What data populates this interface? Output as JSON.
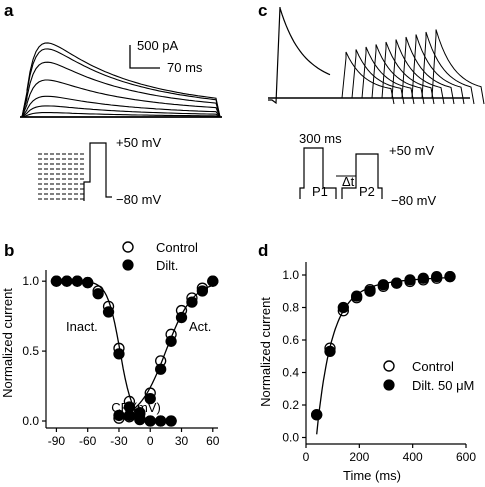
{
  "panels": {
    "a": {
      "letter": "a",
      "scalebar_current": "500 pA",
      "scalebar_time": "70 ms",
      "protocol_high": "+50 mV",
      "protocol_low": "−80 mV"
    },
    "c": {
      "letter": "c",
      "pulse_duration": "300 ms",
      "interval": "Δt",
      "p1": "P1",
      "p2": "P2",
      "protocol_high": "+50 mV",
      "protocol_low": "−80 mV"
    }
  },
  "chart_data": [
    {
      "panel": "b",
      "type": "scatter",
      "xlabel": "CP (mV)",
      "ylabel": "Normalized current",
      "xlim": [
        -100,
        65
      ],
      "ylim": [
        -0.05,
        1.08
      ],
      "xticks": [
        "-90",
        "-60",
        "-30",
        "0",
        "30",
        "60"
      ],
      "yticks": [
        "0.0",
        "0.5",
        "1.0"
      ],
      "legend_placement": "top-right",
      "annotations": {
        "inact": "Inact.",
        "act": "Act."
      },
      "series": [
        {
          "name": "Control",
          "marker": "open",
          "inact_x": [
            -90,
            -80,
            -70,
            -60,
            -50,
            -40,
            -30,
            -20,
            -10,
            0,
            10,
            20
          ],
          "inact_y": [
            1.0,
            1.0,
            1.0,
            0.99,
            0.93,
            0.82,
            0.52,
            0.14,
            0.02,
            0.0,
            0.0,
            0.0
          ],
          "act_x": [
            -30,
            -20,
            -10,
            0,
            10,
            20,
            30,
            40,
            50,
            60
          ],
          "act_y": [
            0.02,
            0.03,
            0.05,
            0.2,
            0.43,
            0.62,
            0.79,
            0.88,
            0.95,
            1.0
          ]
        },
        {
          "name": "Dilt.",
          "marker": "filled",
          "inact_x": [
            -90,
            -80,
            -70,
            -60,
            -50,
            -40,
            -30,
            -20,
            -10,
            0,
            10,
            20
          ],
          "inact_y": [
            1.0,
            1.0,
            1.0,
            0.99,
            0.91,
            0.78,
            0.48,
            0.1,
            0.01,
            0.0,
            0.0,
            0.0
          ],
          "act_x": [
            -30,
            -20,
            -10,
            0,
            10,
            20,
            30,
            40,
            50,
            60
          ],
          "act_y": [
            0.04,
            0.04,
            0.06,
            0.16,
            0.37,
            0.57,
            0.74,
            0.85,
            0.93,
            1.0
          ]
        }
      ]
    },
    {
      "panel": "d",
      "type": "scatter",
      "xlabel": "Time (ms)",
      "ylabel": "Normalized current",
      "xlim": [
        0,
        600
      ],
      "ylim": [
        -0.04,
        1.08
      ],
      "xticks": [
        "0",
        "200",
        "400",
        "600"
      ],
      "yticks": [
        "0.0",
        "0.2",
        "0.4",
        "0.6",
        "0.8",
        "1.0"
      ],
      "legend_placement": "bottom-right",
      "series": [
        {
          "name": "Control",
          "marker": "open",
          "x": [
            40,
            90,
            140,
            190,
            240,
            290,
            340,
            390,
            440,
            490,
            540
          ],
          "y": [
            0.14,
            0.55,
            0.78,
            0.86,
            0.91,
            0.93,
            0.95,
            0.96,
            0.97,
            0.98,
            0.99
          ]
        },
        {
          "name": "Dilt. 50 μM",
          "marker": "filled",
          "x": [
            40,
            90,
            140,
            190,
            240,
            290,
            340,
            390,
            440,
            490,
            540
          ],
          "y": [
            0.14,
            0.53,
            0.8,
            0.87,
            0.9,
            0.94,
            0.95,
            0.97,
            0.98,
            0.99,
            0.99
          ]
        }
      ]
    }
  ]
}
